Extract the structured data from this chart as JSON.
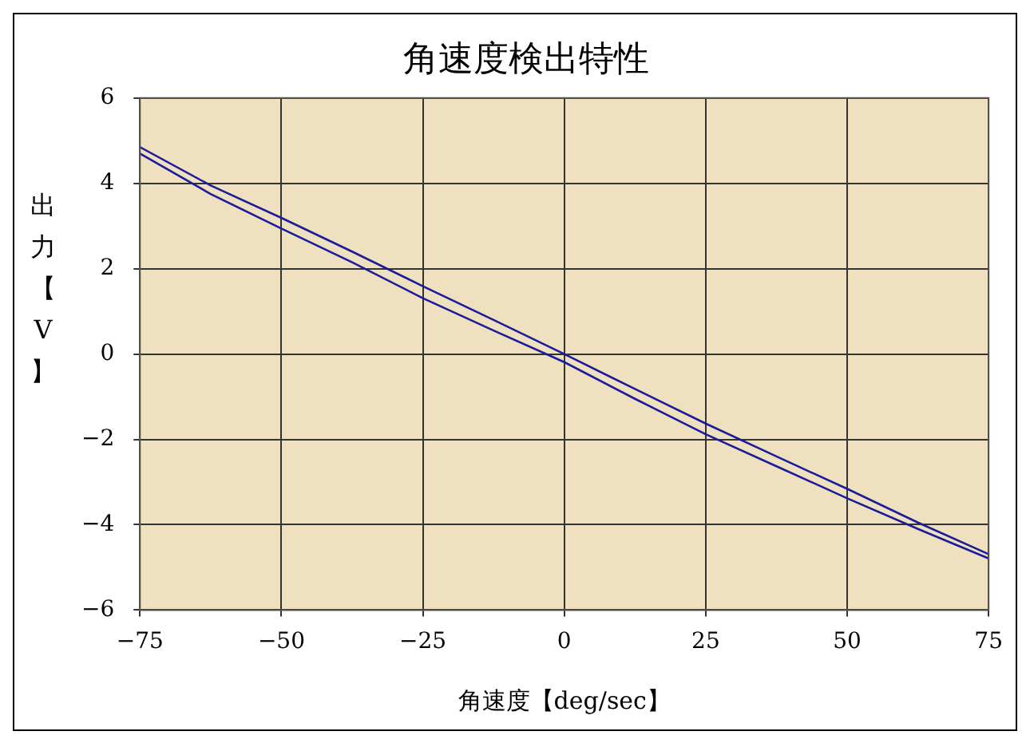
{
  "chart_data": {
    "type": "line",
    "title": "角速度検出特性",
    "xlabel": "角速度【deg/sec】",
    "ylabel": "出力【V】",
    "x": [
      -75,
      -62.5,
      -50,
      -37.5,
      -25,
      -12.5,
      0,
      12.5,
      25,
      37.5,
      50,
      62.5,
      75
    ],
    "series": [
      {
        "color": "#1c1c9a",
        "values": [
          4.85,
          3.95,
          3.19,
          2.4,
          1.59,
          0.8,
          0.0,
          -0.82,
          -1.63,
          -2.4,
          -3.16,
          -3.95,
          -4.69
        ]
      },
      {
        "color": "#1c1c9a",
        "values": [
          4.7,
          3.75,
          2.94,
          2.15,
          1.31,
          0.55,
          -0.19,
          -1.05,
          -1.88,
          -2.63,
          -3.38,
          -4.1,
          -4.79
        ]
      }
    ],
    "xlim": [
      -75,
      75
    ],
    "xticks": [
      -75,
      -50,
      -25,
      0,
      25,
      50,
      75
    ],
    "ylim": [
      -6,
      6
    ],
    "yticks": [
      -6,
      -4,
      -2,
      0,
      2,
      4,
      6
    ],
    "grid": true,
    "legend": false,
    "marker": "none",
    "line_style": "solid"
  }
}
